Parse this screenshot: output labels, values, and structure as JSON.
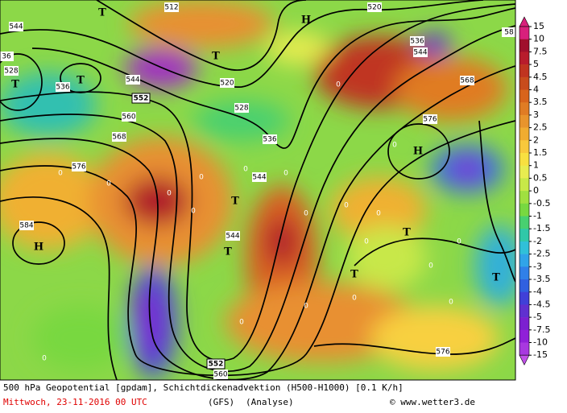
{
  "map": {
    "contour_labels": [
      "544",
      "512",
      "520",
      "36",
      "528",
      "536",
      "544",
      "552",
      "560",
      "520",
      "528",
      "536",
      "544",
      "568",
      "576",
      "584",
      "536",
      "544",
      "568",
      "576",
      "544",
      "552",
      "560",
      "576",
      "58"
    ],
    "highs": [
      "H",
      "H",
      "H"
    ],
    "lows": [
      "T",
      "T",
      "T",
      "T",
      "T",
      "T",
      "T",
      "T",
      "T"
    ],
    "zero_labels": [
      "0",
      "0",
      "0",
      "0",
      "0",
      "0",
      "0",
      "0",
      "0",
      "0",
      "0",
      "0",
      "0",
      "0",
      "0",
      "0",
      "0",
      "0",
      "0",
      "0"
    ]
  },
  "colorbar": {
    "labels": [
      15,
      10,
      7.5,
      5,
      4.5,
      4,
      3.5,
      3,
      2.5,
      2,
      1.5,
      1,
      0.5,
      0,
      -0.5,
      -1,
      -1.5,
      -2,
      -2.5,
      -3,
      -3.5,
      -4,
      -4.5,
      -5,
      -7.5,
      -10,
      -15
    ],
    "colors": [
      "#d8207c",
      "#a0102c",
      "#b81c2c",
      "#c03420",
      "#c84c1c",
      "#d8641c",
      "#e07c24",
      "#e8942c",
      "#f0ac30",
      "#f8c83c",
      "#f8e040",
      "#e8ec50",
      "#c8e848",
      "#a0e040",
      "#78d840",
      "#48d070",
      "#30c8a8",
      "#30c0d8",
      "#30a4e8",
      "#3080e8",
      "#3060e0",
      "#4040d8",
      "#6030d0",
      "#7c20d0",
      "#9020d8",
      "#a838e0",
      "#c050e8"
    ]
  },
  "footer": {
    "line1": "500 hPa Geopotential [gpdam], Schichtdickenadvektion (H500-H1000) [0.1 K/h]",
    "date": "Mittwoch, 23-11-2016  00 UTC",
    "model": "(GFS)",
    "run": "(Analyse)",
    "credit": "© www.wetter3.de"
  }
}
